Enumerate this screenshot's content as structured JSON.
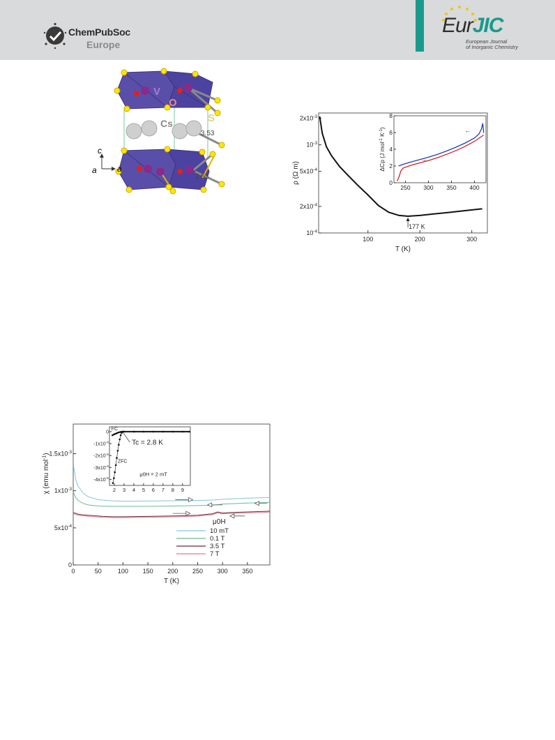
{
  "header": {
    "publisher_name": "ChemPubSoc",
    "publisher_region": "Europe",
    "journal_logo_eur": "Eur",
    "journal_logo_jic": "JIC",
    "journal_line1": "European Journal",
    "journal_line2": "of Inorganic Chemistry"
  },
  "structure": {
    "labels": {
      "v": "V",
      "o": "O",
      "s": "S",
      "cs": "Cs"
    },
    "distances": [
      "3.53",
      "2.53"
    ],
    "axes": {
      "c": "c",
      "a1": "a",
      "a2": "a"
    },
    "colors": {
      "octahedra": "#5a4fa8",
      "sulfur": "#ffe600",
      "vanadium": "#8a2a8a",
      "oxygen": "#e02020",
      "cesium": "#c8c8c8"
    }
  },
  "resistivity": {
    "annotation": "177 K",
    "inset_arrows": [
      "←",
      "→"
    ],
    "chart_data": {
      "type": "line",
      "title": "",
      "xlabel": "T (K)",
      "ylabel": "ρ (Ω m)",
      "yscale": "log",
      "xlim": [
        5,
        330
      ],
      "ylim": [
        0.0001,
        0.0023
      ],
      "xticks": [
        100,
        200,
        300
      ],
      "yticks": [
        {
          "value": 0.002,
          "label": "2x10-3"
        },
        {
          "value": 0.001,
          "label": "10-3"
        },
        {
          "value": 0.0005,
          "label": "5x10-4"
        },
        {
          "value": 0.0002,
          "label": "2x10-4"
        },
        {
          "value": 0.0001,
          "label": "10-4"
        }
      ],
      "series": [
        {
          "x": [
            7,
            12,
            20,
            30,
            45,
            60,
            80,
            100,
            120,
            140,
            160,
            177,
            200,
            230,
            260,
            290,
            320
          ],
          "y": [
            0.0021,
            0.00135,
            0.00095,
            0.00075,
            0.00057,
            0.00046,
            0.00035,
            0.00027,
            0.000205,
            0.000172,
            0.000158,
            0.000155,
            0.000158,
            0.000165,
            0.000172,
            0.00018,
            0.000188
          ],
          "color": "#111111"
        }
      ],
      "inset": {
        "type": "line",
        "xlabel": "",
        "ylabel": "ΔCp (J mol-1 K-1)",
        "xlim": [
          225,
          425
        ],
        "ylim": [
          0,
          8
        ],
        "xticks": [
          250,
          300,
          350,
          400
        ],
        "yticks": [
          0,
          2,
          4,
          6,
          8
        ],
        "series": [
          {
            "x": [
              235,
              245,
              260,
              280,
              300,
              320,
              340,
              360,
              380,
              400,
              410,
              415,
              418,
              420
            ],
            "y": [
              2.0,
              2.2,
              2.45,
              2.75,
              3.05,
              3.4,
              3.8,
              4.25,
              4.75,
              5.35,
              5.85,
              6.4,
              7.1,
              5.95
            ],
            "color": "#1f3fb3"
          },
          {
            "x": [
              232,
              236,
              240,
              245,
              260,
              280,
              300,
              320,
              340,
              360,
              380,
              400,
              420
            ],
            "y": [
              0.2,
              0.7,
              1.4,
              1.75,
              2.05,
              2.35,
              2.65,
              3.0,
              3.4,
              3.85,
              4.35,
              4.95,
              5.7
            ],
            "color": "#d42222"
          }
        ]
      }
    }
  },
  "susceptibility": {
    "legend_title": "μ0H",
    "inset_labels": {
      "fc": "FC",
      "zfc": "ZFC",
      "tc": "Tc = 2.8 K",
      "field": "μ0H = 2 mT"
    },
    "chart_data": {
      "type": "line",
      "title": "",
      "xlabel": "T (K)",
      "ylabel": "χ (emu mol-1)",
      "xlim": [
        0,
        395
      ],
      "ylim": [
        0,
        0.0019
      ],
      "xticks": [
        0,
        50,
        100,
        150,
        200,
        250,
        300,
        350
      ],
      "yticks": [
        {
          "value": 0,
          "label": "0"
        },
        {
          "value": 0.0005,
          "label": "5x10-4"
        },
        {
          "value": 0.001,
          "label": "1x10-3"
        },
        {
          "value": 0.0015,
          "label": "1.5x10-3"
        }
      ],
      "legend": [
        "10 mT",
        "0.1 T",
        "3.5 T",
        "7 T"
      ],
      "series": [
        {
          "name": "10 mT",
          "color": "#7fc6e0",
          "x": [
            1,
            5,
            10,
            20,
            30,
            50,
            75,
            100,
            150,
            200,
            250,
            280,
            300,
            350,
            395
          ],
          "y": [
            0.00132,
            0.00115,
            0.00106,
            0.00097,
            0.00092,
            0.00088,
            0.000865,
            0.00086,
            0.000862,
            0.000865,
            0.00087,
            0.000875,
            0.000885,
            0.0009,
            0.00091
          ]
        },
        {
          "name": "0.1 T",
          "color": "#6aba98",
          "x": [
            1,
            5,
            10,
            20,
            30,
            50,
            75,
            100,
            150,
            200,
            250,
            280,
            300,
            350,
            395
          ],
          "y": [
            0.00097,
            0.00091,
            0.00087,
            0.00083,
            0.00081,
            0.000795,
            0.00079,
            0.00079,
            0.00079,
            0.000795,
            0.0008,
            0.000805,
            0.00082,
            0.000835,
            0.000845
          ]
        },
        {
          "name": "3.5 T",
          "color": "#6a2a3a",
          "x": [
            1,
            10,
            20,
            40,
            60,
            80,
            100,
            150,
            200,
            250,
            280,
            290,
            300,
            310,
            350,
            395
          ],
          "y": [
            0.000705,
            0.000685,
            0.000675,
            0.000665,
            0.000655,
            0.00065,
            0.00065,
            0.000655,
            0.00066,
            0.00067,
            0.00069,
            0.000715,
            0.0007,
            0.000705,
            0.000715,
            0.000725
          ]
        },
        {
          "name": "7 T",
          "color": "#e07a90",
          "x": [
            1,
            10,
            20,
            40,
            60,
            80,
            100,
            150,
            200,
            250,
            280,
            290,
            300,
            310,
            350,
            395
          ],
          "y": [
            0.00069,
            0.00067,
            0.000662,
            0.000652,
            0.000642,
            0.000638,
            0.000638,
            0.000643,
            0.000648,
            0.000658,
            0.000678,
            0.000702,
            0.000688,
            0.000692,
            0.000702,
            0.000712
          ]
        }
      ],
      "inset": {
        "type": "scatter",
        "xlim": [
          1.5,
          9.8
        ],
        "ylim": [
          -4.5e-06,
          4e-07
        ],
        "xticks": [
          2,
          3,
          4,
          5,
          6,
          7,
          8,
          9
        ],
        "yticks": [
          {
            "value": 0,
            "label": "0"
          },
          {
            "value": -1e-06,
            "label": "-1x10-6"
          },
          {
            "value": -2e-06,
            "label": "-2x10-6"
          },
          {
            "value": -3e-06,
            "label": "-3x10-6"
          },
          {
            "value": -4e-06,
            "label": "-4x10-6"
          }
        ],
        "series": [
          {
            "name": "FC",
            "color": "#111111",
            "x": [
              1.8,
              2.0,
              2.2,
              2.4,
              2.6,
              2.8,
              3.0,
              4,
              5,
              6,
              7,
              8,
              9,
              9.7
            ],
            "y": [
              -3e-07,
              -2.2e-07,
              -1.5e-07,
              -8e-08,
              -3e-08,
              0.0,
              0.0,
              0.0,
              0.0,
              0.0,
              0.0,
              0.0,
              0.0,
              0.0
            ]
          },
          {
            "name": "ZFC",
            "color": "#111111",
            "x": [
              1.85,
              1.95,
              2.05,
              2.15,
              2.25,
              2.35,
              2.45,
              2.55,
              2.65,
              2.75,
              2.85
            ],
            "y": [
              -4.3e-06,
              -3.9e-06,
              -3.4e-06,
              -2.8e-06,
              -2.2e-06,
              -1.6e-06,
              -1.1e-06,
              -6.5e-07,
              -3e-07,
              -1e-07,
              0.0
            ]
          }
        ]
      }
    }
  }
}
